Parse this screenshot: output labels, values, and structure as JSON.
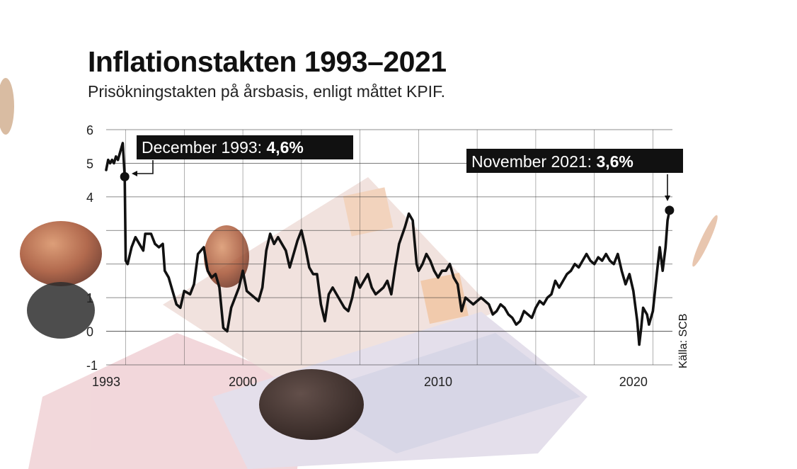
{
  "title": "Inflationstakten 1993–2021",
  "subtitle": "Prisökningstakten på årsbasis, enligt måttet KPIF.",
  "source": "Källa: SCB",
  "colors": {
    "line": "#111111",
    "callout_bg": "#111111",
    "callout_text": "#ffffff",
    "grid": "#333333"
  },
  "annotations": [
    {
      "label": "December 1993: ",
      "value": "4,6%"
    },
    {
      "label": "November 2021: ",
      "value": "3,6%"
    }
  ],
  "chart_data": {
    "type": "line",
    "ylim": [
      -1,
      6
    ],
    "yticks": [
      6,
      5,
      4,
      1,
      0,
      -1
    ],
    "xticks": [
      {
        "label": "1993",
        "year": 1993
      },
      {
        "label": "2000",
        "year": 2000
      },
      {
        "label": "2010",
        "year": 2010
      },
      {
        "label": "2020",
        "year": 2020
      }
    ],
    "xlim": [
      1993,
      2022
    ],
    "grid": true,
    "series": [
      {
        "points": [
          [
            1993.0,
            4.8
          ],
          [
            1993.1,
            5.1
          ],
          [
            1993.2,
            5.0
          ],
          [
            1993.3,
            5.1
          ],
          [
            1993.4,
            5.0
          ],
          [
            1993.5,
            5.2
          ],
          [
            1993.6,
            5.1
          ],
          [
            1993.7,
            5.3
          ],
          [
            1993.85,
            5.6
          ],
          [
            1993.95,
            4.6
          ],
          [
            1994.0,
            2.1
          ],
          [
            1994.1,
            2.0
          ],
          [
            1994.3,
            2.5
          ],
          [
            1994.5,
            2.8
          ],
          [
            1994.7,
            2.6
          ],
          [
            1994.9,
            2.4
          ],
          [
            1995.0,
            2.9
          ],
          [
            1995.3,
            2.9
          ],
          [
            1995.5,
            2.6
          ],
          [
            1995.7,
            2.5
          ],
          [
            1995.9,
            2.6
          ],
          [
            1996.0,
            1.8
          ],
          [
            1996.2,
            1.6
          ],
          [
            1996.4,
            1.2
          ],
          [
            1996.6,
            0.8
          ],
          [
            1996.8,
            0.7
          ],
          [
            1997.0,
            1.2
          ],
          [
            1997.3,
            1.1
          ],
          [
            1997.5,
            1.4
          ],
          [
            1997.7,
            2.3
          ],
          [
            1998.0,
            2.5
          ],
          [
            1998.2,
            1.8
          ],
          [
            1998.4,
            1.6
          ],
          [
            1998.6,
            1.7
          ],
          [
            1998.8,
            1.3
          ],
          [
            1999.0,
            0.1
          ],
          [
            1999.2,
            0.0
          ],
          [
            1999.4,
            0.7
          ],
          [
            1999.6,
            1.0
          ],
          [
            1999.8,
            1.3
          ],
          [
            2000.0,
            1.8
          ],
          [
            2000.2,
            1.2
          ],
          [
            2000.4,
            1.1
          ],
          [
            2000.6,
            1.0
          ],
          [
            2000.8,
            0.9
          ],
          [
            2001.0,
            1.3
          ],
          [
            2001.2,
            2.4
          ],
          [
            2001.4,
            2.9
          ],
          [
            2001.6,
            2.6
          ],
          [
            2001.8,
            2.8
          ],
          [
            2002.0,
            2.6
          ],
          [
            2002.2,
            2.4
          ],
          [
            2002.4,
            1.9
          ],
          [
            2002.6,
            2.3
          ],
          [
            2002.8,
            2.7
          ],
          [
            2003.0,
            3.0
          ],
          [
            2003.2,
            2.5
          ],
          [
            2003.4,
            1.9
          ],
          [
            2003.6,
            1.7
          ],
          [
            2003.8,
            1.7
          ],
          [
            2004.0,
            0.8
          ],
          [
            2004.2,
            0.3
          ],
          [
            2004.4,
            1.1
          ],
          [
            2004.6,
            1.3
          ],
          [
            2004.8,
            1.1
          ],
          [
            2005.0,
            0.9
          ],
          [
            2005.2,
            0.7
          ],
          [
            2005.4,
            0.6
          ],
          [
            2005.6,
            1.0
          ],
          [
            2005.8,
            1.6
          ],
          [
            2006.0,
            1.3
          ],
          [
            2006.2,
            1.5
          ],
          [
            2006.4,
            1.7
          ],
          [
            2006.6,
            1.3
          ],
          [
            2006.8,
            1.1
          ],
          [
            2007.0,
            1.2
          ],
          [
            2007.2,
            1.3
          ],
          [
            2007.4,
            1.5
          ],
          [
            2007.6,
            1.1
          ],
          [
            2007.8,
            1.9
          ],
          [
            2008.0,
            2.6
          ],
          [
            2008.3,
            3.1
          ],
          [
            2008.5,
            3.5
          ],
          [
            2008.7,
            3.3
          ],
          [
            2008.9,
            2.0
          ],
          [
            2009.0,
            1.8
          ],
          [
            2009.2,
            2.0
          ],
          [
            2009.4,
            2.3
          ],
          [
            2009.6,
            2.1
          ],
          [
            2009.8,
            1.8
          ],
          [
            2010.0,
            1.6
          ],
          [
            2010.2,
            1.8
          ],
          [
            2010.4,
            1.8
          ],
          [
            2010.6,
            2.0
          ],
          [
            2010.8,
            1.6
          ],
          [
            2011.0,
            1.4
          ],
          [
            2011.2,
            0.6
          ],
          [
            2011.4,
            1.0
          ],
          [
            2011.6,
            0.9
          ],
          [
            2011.8,
            0.8
          ],
          [
            2012.0,
            0.9
          ],
          [
            2012.2,
            1.0
          ],
          [
            2012.4,
            0.9
          ],
          [
            2012.6,
            0.8
          ],
          [
            2012.8,
            0.5
          ],
          [
            2013.0,
            0.6
          ],
          [
            2013.2,
            0.8
          ],
          [
            2013.4,
            0.7
          ],
          [
            2013.6,
            0.5
          ],
          [
            2013.8,
            0.4
          ],
          [
            2014.0,
            0.2
          ],
          [
            2014.2,
            0.3
          ],
          [
            2014.4,
            0.6
          ],
          [
            2014.6,
            0.5
          ],
          [
            2014.8,
            0.4
          ],
          [
            2015.0,
            0.7
          ],
          [
            2015.2,
            0.9
          ],
          [
            2015.4,
            0.8
          ],
          [
            2015.6,
            1.0
          ],
          [
            2015.8,
            1.1
          ],
          [
            2016.0,
            1.5
          ],
          [
            2016.2,
            1.3
          ],
          [
            2016.4,
            1.5
          ],
          [
            2016.6,
            1.7
          ],
          [
            2016.8,
            1.8
          ],
          [
            2017.0,
            2.0
          ],
          [
            2017.2,
            1.9
          ],
          [
            2017.4,
            2.1
          ],
          [
            2017.6,
            2.3
          ],
          [
            2017.8,
            2.1
          ],
          [
            2018.0,
            2.0
          ],
          [
            2018.2,
            2.2
          ],
          [
            2018.4,
            2.1
          ],
          [
            2018.6,
            2.3
          ],
          [
            2018.8,
            2.1
          ],
          [
            2019.0,
            2.0
          ],
          [
            2019.2,
            2.3
          ],
          [
            2019.4,
            1.8
          ],
          [
            2019.6,
            1.4
          ],
          [
            2019.8,
            1.7
          ],
          [
            2020.0,
            1.2
          ],
          [
            2020.2,
            0.3
          ],
          [
            2020.3,
            -0.4
          ],
          [
            2020.4,
            0.1
          ],
          [
            2020.5,
            0.7
          ],
          [
            2020.7,
            0.5
          ],
          [
            2020.8,
            0.2
          ],
          [
            2021.0,
            0.6
          ],
          [
            2021.2,
            1.7
          ],
          [
            2021.35,
            2.5
          ],
          [
            2021.5,
            1.8
          ],
          [
            2021.65,
            2.5
          ],
          [
            2021.75,
            3.3
          ],
          [
            2021.85,
            3.6
          ]
        ]
      }
    ]
  }
}
